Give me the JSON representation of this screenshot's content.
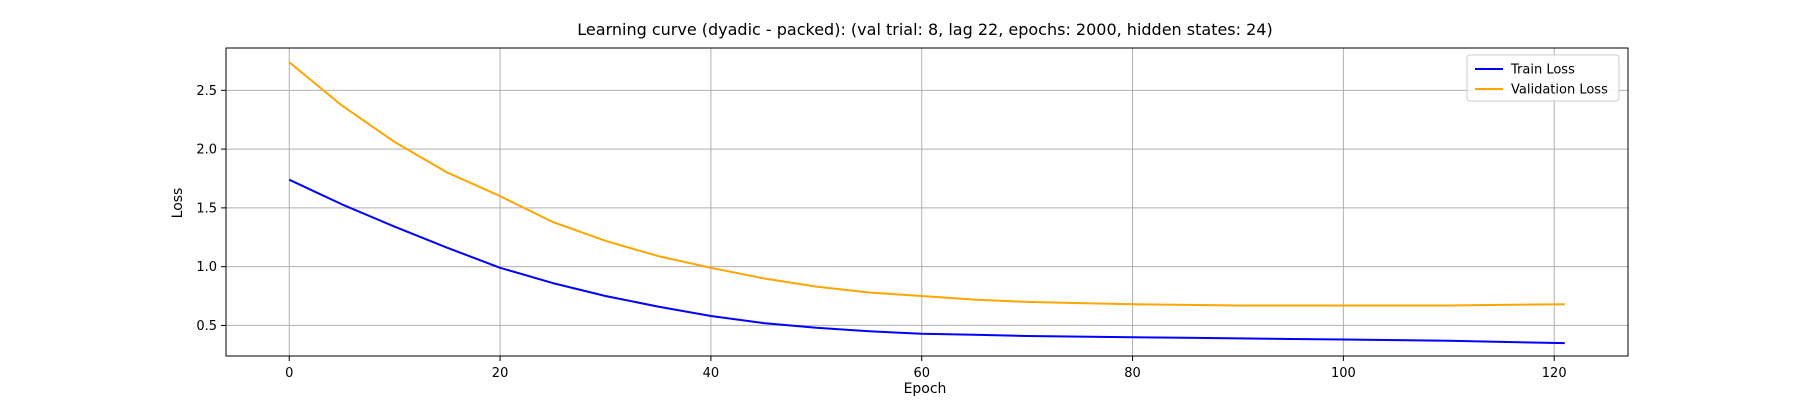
{
  "chart_data": {
    "type": "line",
    "title": "Learning curve (dyadic - packed): (val trial: 8, lag 22, epochs: 2000, hidden states: 24)",
    "xlabel": "Epoch",
    "ylabel": "Loss",
    "xlim": [
      -6,
      127
    ],
    "ylim": [
      0.24,
      2.86
    ],
    "xticks": [
      0,
      20,
      40,
      60,
      80,
      100,
      120
    ],
    "yticks": [
      0.5,
      1.0,
      1.5,
      2.0,
      2.5
    ],
    "xtick_labels": [
      "0",
      "20",
      "40",
      "60",
      "80",
      "100",
      "120"
    ],
    "ytick_labels": [
      "0.5",
      "1.0",
      "1.5",
      "2.0",
      "2.5"
    ],
    "grid": true,
    "legend_position": "top-right",
    "series": [
      {
        "name": "Train Loss",
        "color": "#0000ff",
        "x": [
          0,
          5,
          10,
          15,
          20,
          25,
          30,
          35,
          40,
          45,
          50,
          55,
          60,
          65,
          70,
          75,
          80,
          85,
          90,
          95,
          100,
          105,
          110,
          115,
          121
        ],
        "y": [
          1.74,
          1.53,
          1.34,
          1.16,
          0.99,
          0.86,
          0.75,
          0.66,
          0.58,
          0.52,
          0.48,
          0.45,
          0.43,
          0.42,
          0.41,
          0.405,
          0.4,
          0.395,
          0.39,
          0.385,
          0.38,
          0.375,
          0.37,
          0.36,
          0.35
        ]
      },
      {
        "name": "Validation Loss",
        "color": "#ffa500",
        "x": [
          0,
          5,
          10,
          15,
          20,
          25,
          30,
          35,
          40,
          45,
          50,
          55,
          60,
          65,
          70,
          75,
          80,
          85,
          90,
          95,
          100,
          105,
          110,
          115,
          121
        ],
        "y": [
          2.74,
          2.37,
          2.06,
          1.8,
          1.6,
          1.38,
          1.22,
          1.09,
          0.99,
          0.9,
          0.83,
          0.78,
          0.75,
          0.72,
          0.7,
          0.69,
          0.68,
          0.675,
          0.67,
          0.67,
          0.67,
          0.67,
          0.67,
          0.675,
          0.68
        ]
      }
    ]
  }
}
